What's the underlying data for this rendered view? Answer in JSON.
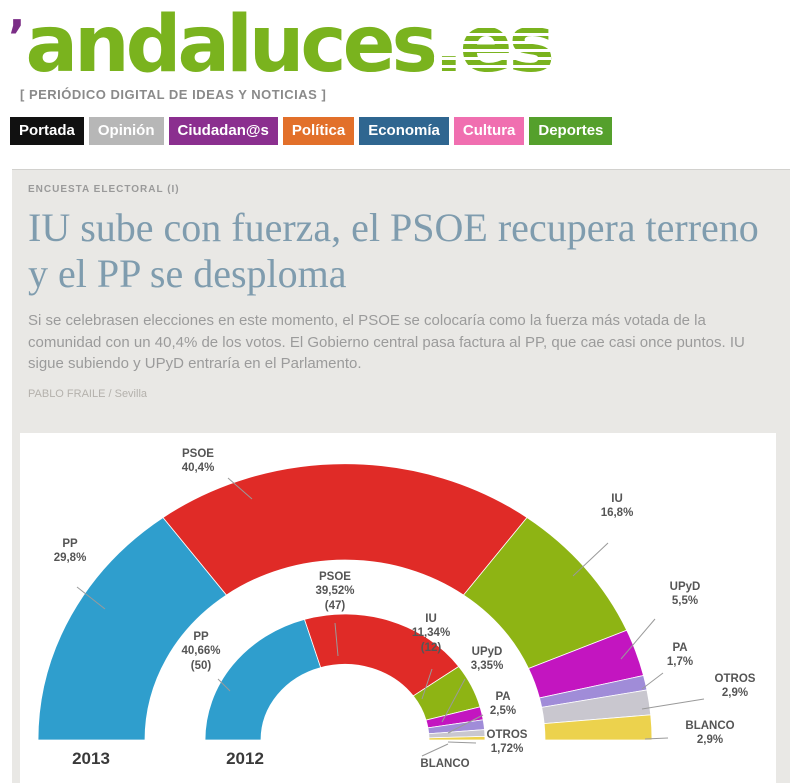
{
  "header": {
    "logo_mark": "’",
    "logo_main": "andaluces",
    "logo_suffix": ".es",
    "tagline": "[ PERIÓDICO DIGITAL DE IDEAS Y NOTICIAS ]"
  },
  "nav": {
    "items": [
      {
        "label": "Portada",
        "bg": "#111111",
        "fg": "#ffffff"
      },
      {
        "label": "Opinión",
        "bg": "#b7b7b7",
        "fg": "#ffffff"
      },
      {
        "label": "Ciudadan@s",
        "bg": "#8b2f8f",
        "fg": "#ffffff"
      },
      {
        "label": "Política",
        "bg": "#e2702a",
        "fg": "#ffffff"
      },
      {
        "label": "Economía",
        "bg": "#2f6690",
        "fg": "#ffffff"
      },
      {
        "label": "Cultura",
        "bg": "#f06fb0",
        "fg": "#ffffff"
      },
      {
        "label": "Deportes",
        "bg": "#55a02c",
        "fg": "#ffffff"
      }
    ]
  },
  "article": {
    "kicker": "ENCUESTA ELECTORAL (I)",
    "headline": "IU sube con fuerza, el PSOE recupera terreno y el PP se desploma",
    "lede": "Si se celebrasen elecciones en este momento, el PSOE se colocaría como la fuerza más votada de la comunidad con un 40,4% de los votos. El Gobierno central pasa factura al PP, que cae casi once puntos. IU sigue subiendo y UPyD entraría en el Parlamento.",
    "byline": "PABLO FRAILE / Sevilla"
  },
  "chart_data": {
    "type": "half-donut",
    "description": "Two concentric semicircle donut rings: outer = 2013 poll estimate, inner = 2012 election result (seats in parentheses). Slices drawn left to right.",
    "rings": [
      {
        "year": "2013",
        "position": "outer",
        "series": [
          {
            "party": "PP",
            "value": 29.8,
            "value_label": "29,8%",
            "color": "#2f9ecd"
          },
          {
            "party": "PSOE",
            "value": 40.4,
            "value_label": "40,4%",
            "color": "#e02b27"
          },
          {
            "party": "IU",
            "value": 16.8,
            "value_label": "16,8%",
            "color": "#8eb414"
          },
          {
            "party": "UPyD",
            "value": 5.5,
            "value_label": "5,5%",
            "color": "#c315c0"
          },
          {
            "party": "PA",
            "value": 1.7,
            "value_label": "1,7%",
            "color": "#a08cd8"
          },
          {
            "party": "OTROS",
            "value": 2.9,
            "value_label": "2,9%",
            "color": "#c9c7cf"
          },
          {
            "party": "BLANCO",
            "value": 2.9,
            "value_label": "2,9%",
            "color": "#ecd24d"
          }
        ]
      },
      {
        "year": "2012",
        "position": "inner",
        "series": [
          {
            "party": "PP",
            "value": 40.66,
            "value_label": "40,66%",
            "seats_label": "(50)",
            "color": "#2f9ecd"
          },
          {
            "party": "PSOE",
            "value": 39.52,
            "value_label": "39,52%",
            "seats_label": "(47)",
            "color": "#e02b27"
          },
          {
            "party": "IU",
            "value": 11.34,
            "value_label": "11,34%",
            "seats_label": "(12)",
            "color": "#8eb414"
          },
          {
            "party": "UPyD",
            "value": 3.35,
            "value_label": "3,35%",
            "color": "#c315c0"
          },
          {
            "party": "PA",
            "value": 2.5,
            "value_label": "2,5%",
            "color": "#a08cd8"
          },
          {
            "party": "OTROS",
            "value": 1.72,
            "value_label": "1,72%",
            "color": "#c9c7cf"
          },
          {
            "party": "BLANCO",
            "value": 0.91,
            "value_label": "",
            "color": "#ecd24d"
          }
        ]
      }
    ]
  }
}
